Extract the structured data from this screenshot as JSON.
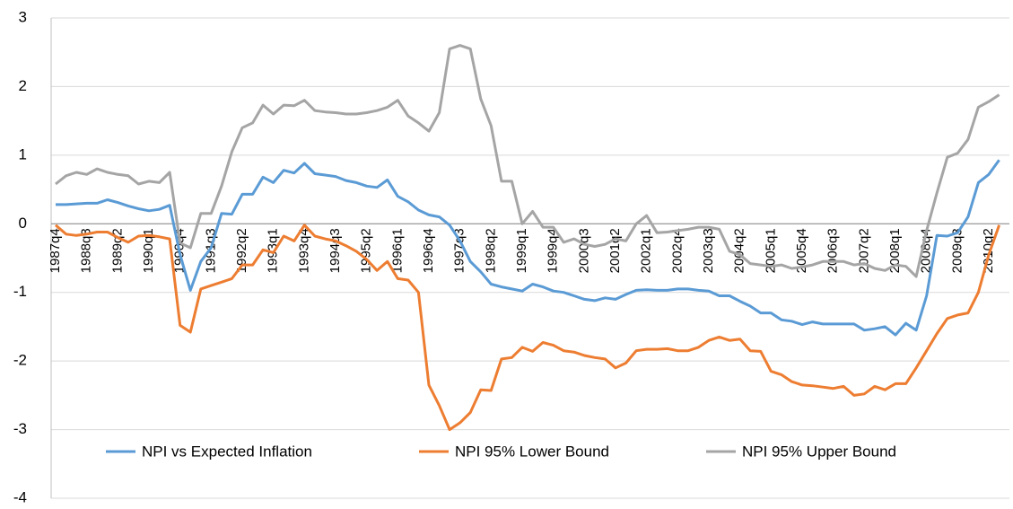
{
  "chart_data": {
    "type": "line",
    "categories": [
      "1987q4",
      null,
      null,
      "1988q3",
      null,
      null,
      "1989q2",
      null,
      null,
      "1990q1",
      null,
      null,
      "1990q4",
      null,
      null,
      "1991q3",
      null,
      null,
      "1992q2",
      null,
      null,
      "1993q1",
      null,
      null,
      "1993q4",
      null,
      null,
      "1994q3",
      null,
      null,
      "1995q2",
      null,
      null,
      "1996q1",
      null,
      null,
      "1996q4",
      null,
      null,
      "1997q3",
      null,
      null,
      "1998q2",
      null,
      null,
      "1999q1",
      null,
      null,
      "1999q4",
      null,
      null,
      "2000q3",
      null,
      null,
      "2001q2",
      null,
      null,
      "2002q1",
      null,
      null,
      "2002q4",
      null,
      null,
      "2003q3",
      null,
      null,
      "2004q2",
      null,
      null,
      "2005q1",
      null,
      null,
      "2005q4",
      null,
      null,
      "2006q3",
      null,
      null,
      "2007q2",
      null,
      null,
      "2008q1",
      null,
      null,
      "2008q4",
      null,
      null,
      "2009q3",
      null,
      null,
      "2010q2",
      null
    ],
    "series": [
      {
        "name": "NPI vs Expected Inflation",
        "color": "#5b9bd5",
        "values": [
          0.28,
          0.28,
          0.29,
          0.3,
          0.3,
          0.35,
          0.31,
          0.26,
          0.22,
          0.19,
          0.21,
          0.27,
          -0.45,
          -0.97,
          -0.55,
          -0.35,
          0.15,
          0.14,
          0.43,
          0.43,
          0.68,
          0.6,
          0.78,
          0.74,
          0.88,
          0.73,
          0.71,
          0.69,
          0.63,
          0.6,
          0.55,
          0.53,
          0.64,
          0.4,
          0.32,
          0.2,
          0.13,
          0.1,
          -0.02,
          -0.25,
          -0.55,
          -0.7,
          -0.88,
          -0.92,
          -0.95,
          -0.98,
          -0.88,
          -0.92,
          -0.98,
          -1.0,
          -1.05,
          -1.1,
          -1.12,
          -1.08,
          -1.1,
          -1.03,
          -0.97,
          -0.96,
          -0.97,
          -0.97,
          -0.95,
          -0.95,
          -0.97,
          -0.98,
          -1.05,
          -1.05,
          -1.13,
          -1.2,
          -1.3,
          -1.3,
          -1.4,
          -1.42,
          -1.47,
          -1.43,
          -1.46,
          -1.46,
          -1.46,
          -1.46,
          -1.55,
          -1.53,
          -1.5,
          -1.62,
          -1.45,
          -1.55,
          -1.05,
          -0.17,
          -0.18,
          -0.13,
          0.1,
          0.6,
          0.72,
          0.93
        ]
      },
      {
        "name": "NPI 95% Lower Bound",
        "color": "#ed7d31",
        "values": [
          -0.02,
          -0.15,
          -0.17,
          -0.15,
          -0.12,
          -0.12,
          -0.2,
          -0.27,
          -0.18,
          -0.17,
          -0.19,
          -0.22,
          -1.48,
          -1.58,
          -0.95,
          -0.9,
          -0.85,
          -0.8,
          -0.6,
          -0.6,
          -0.38,
          -0.42,
          -0.18,
          -0.25,
          -0.02,
          -0.18,
          -0.22,
          -0.25,
          -0.32,
          -0.4,
          -0.52,
          -0.68,
          -0.55,
          -0.8,
          -0.82,
          -1.0,
          -2.35,
          -2.65,
          -3.0,
          -2.9,
          -2.75,
          -2.42,
          -2.43,
          -1.97,
          -1.95,
          -1.8,
          -1.86,
          -1.73,
          -1.77,
          -1.85,
          -1.87,
          -1.92,
          -1.95,
          -1.97,
          -2.1,
          -2.03,
          -1.85,
          -1.83,
          -1.83,
          -1.82,
          -1.85,
          -1.85,
          -1.8,
          -1.7,
          -1.65,
          -1.7,
          -1.68,
          -1.85,
          -1.86,
          -2.15,
          -2.2,
          -2.3,
          -2.35,
          -2.36,
          -2.38,
          -2.4,
          -2.37,
          -2.5,
          -2.48,
          -2.37,
          -2.42,
          -2.33,
          -2.33,
          -2.1,
          -1.85,
          -1.6,
          -1.38,
          -1.33,
          -1.3,
          -1.0,
          -0.45,
          -0.02
        ]
      },
      {
        "name": "NPI 95% Upper Bound",
        "color": "#a5a5a5",
        "values": [
          0.58,
          0.7,
          0.75,
          0.72,
          0.8,
          0.75,
          0.72,
          0.7,
          0.58,
          0.62,
          0.6,
          0.75,
          -0.28,
          -0.35,
          0.15,
          0.15,
          0.55,
          1.05,
          1.4,
          1.47,
          1.73,
          1.6,
          1.73,
          1.72,
          1.8,
          1.65,
          1.63,
          1.62,
          1.6,
          1.6,
          1.62,
          1.65,
          1.7,
          1.8,
          1.57,
          1.47,
          1.35,
          1.62,
          2.55,
          2.6,
          2.55,
          1.82,
          1.43,
          0.62,
          0.62,
          0.0,
          0.18,
          -0.05,
          -0.05,
          -0.27,
          -0.22,
          -0.3,
          -0.33,
          -0.3,
          -0.22,
          -0.25,
          0.0,
          0.12,
          -0.13,
          -0.12,
          -0.1,
          -0.08,
          -0.05,
          -0.05,
          -0.08,
          -0.4,
          -0.45,
          -0.58,
          -0.6,
          -0.62,
          -0.6,
          -0.65,
          -0.63,
          -0.6,
          -0.55,
          -0.55,
          -0.55,
          -0.6,
          -0.58,
          -0.65,
          -0.68,
          -0.6,
          -0.62,
          -0.77,
          -0.1,
          0.45,
          0.97,
          1.03,
          1.23,
          1.7,
          1.78,
          1.88
        ]
      }
    ],
    "ylim": [
      -4,
      3
    ],
    "yticks": [
      -4,
      -3,
      -2,
      -1,
      0,
      1,
      2,
      3
    ],
    "grid": true,
    "legend": "bottom"
  }
}
